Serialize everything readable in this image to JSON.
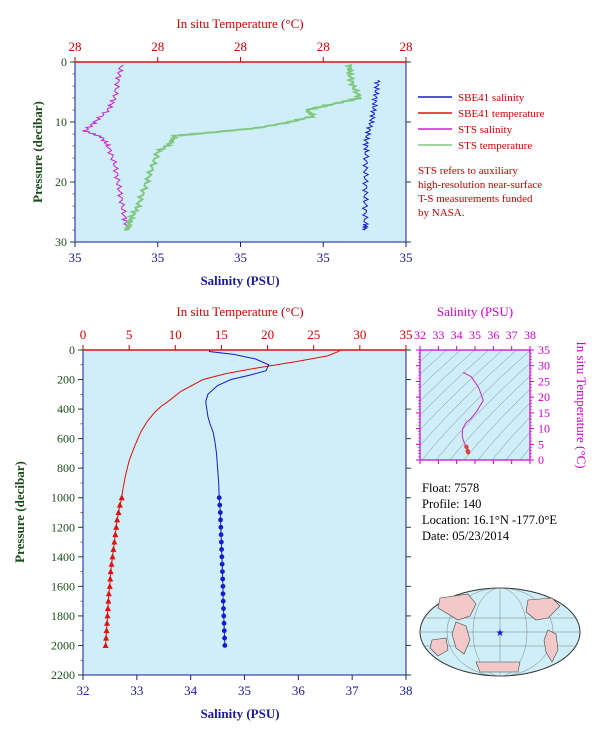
{
  "colors": {
    "panel_bg": "#cfeef8",
    "sbe_salinity": "#1a1acc",
    "sbe_temperature": "#e01010",
    "sts_salinity": "#cc22cc",
    "sts_temperature": "#80c880",
    "axis_red": "#cc0000",
    "axis_blue": "#1a1a99",
    "axis_green": "#1a4d1a",
    "axis_magenta": "#cc00cc"
  },
  "legend": {
    "items": [
      {
        "label": "SBE41 salinity",
        "color": "#1a1acc"
      },
      {
        "label": "SBE41 temperature",
        "color": "#e01010"
      },
      {
        "label": "STS salinity",
        "color": "#cc22cc"
      },
      {
        "label": "STS temperature",
        "color": "#80c880"
      }
    ],
    "note": [
      "STS refers to auxiliary",
      "high-resolution near-surface",
      "T-S measurements funded",
      "by NASA."
    ]
  },
  "float_info": {
    "float": "Float:  7578",
    "profile": "Profile:  140",
    "location": "Location:  16.1°N  -177.0°E",
    "date": "Date:  05/23/2014"
  },
  "chart_data": [
    {
      "type": "line",
      "name_hint": "near-surface",
      "title_top": "In situ Temperature (°C)",
      "xlabel": "Salinity (PSU)",
      "ylabel": "Pressure (decibar)",
      "x_ticks_top": [
        "28",
        "28",
        "28",
        "28",
        "28"
      ],
      "x_ticks_bottom": [
        "35",
        "35",
        "35",
        "35",
        "35"
      ],
      "y_ticks": [
        "0",
        "10",
        "20",
        "30"
      ],
      "ylim": [
        0,
        30
      ],
      "series": [
        {
          "name": "SBE41 salinity",
          "y": [
            3,
            5,
            7,
            9,
            11,
            13,
            15,
            18,
            21,
            24,
            27,
            28
          ],
          "x_frac": [
            0.915,
            0.91,
            0.905,
            0.9,
            0.89,
            0.88,
            0.88,
            0.878,
            0.878,
            0.877,
            0.877,
            0.877
          ]
        },
        {
          "name": "STS salinity",
          "y": [
            0.5,
            3,
            6,
            8,
            10,
            11.5,
            12.5,
            14,
            17,
            20,
            23,
            26,
            28
          ],
          "x_frac": [
            0.14,
            0.13,
            0.12,
            0.1,
            0.06,
            0.03,
            0.08,
            0.1,
            0.12,
            0.13,
            0.14,
            0.15,
            0.16
          ]
        },
        {
          "name": "STS temperature",
          "y": [
            0.5,
            2,
            4,
            6,
            7,
            8,
            9,
            10,
            11,
            11.8,
            12.3,
            13.5,
            15,
            18,
            21,
            24,
            26,
            27.5,
            28
          ],
          "x_frac": [
            0.83,
            0.83,
            0.84,
            0.86,
            0.78,
            0.7,
            0.72,
            0.65,
            0.55,
            0.4,
            0.3,
            0.29,
            0.25,
            0.23,
            0.21,
            0.19,
            0.17,
            0.16,
            0.155
          ]
        }
      ]
    },
    {
      "type": "line",
      "name_hint": "full-profile",
      "title_top": "In situ Temperature (°C)",
      "xlabel": "Salinity (PSU)",
      "ylabel": "Pressure (decibar)",
      "x_ticks_top": [
        "0",
        "5",
        "10",
        "15",
        "20",
        "25",
        "30",
        "35"
      ],
      "x_ticks_bottom": [
        "32",
        "33",
        "34",
        "35",
        "36",
        "37",
        "38"
      ],
      "y_ticks": [
        "0",
        "200",
        "400",
        "600",
        "800",
        "1000",
        "1200",
        "1400",
        "1600",
        "1800",
        "2000",
        "2200"
      ],
      "xlim_temp": [
        0,
        35
      ],
      "xlim_sal": [
        32,
        38
      ],
      "ylim": [
        0,
        2200
      ],
      "series": [
        {
          "name": "SBE41 temperature",
          "pressure": [
            0,
            10,
            40,
            80,
            120,
            160,
            200,
            240,
            280,
            320,
            350,
            380,
            420,
            480,
            550,
            650,
            750,
            850,
            950,
            1000
          ],
          "values": [
            27.9,
            27.7,
            26.5,
            23,
            19,
            15.5,
            13,
            11.8,
            10.6,
            9.8,
            9.2,
            8.5,
            7.8,
            7,
            6.3,
            5.6,
            5,
            4.6,
            4.3,
            4.2
          ]
        },
        {
          "name": "SBE41 temperature deep",
          "pressure": [
            1000,
            1050,
            1100,
            1150,
            1200,
            1250,
            1300,
            1350,
            1400,
            1450,
            1500,
            1550,
            1600,
            1650,
            1700,
            1750,
            1800,
            1850,
            1900,
            1950,
            2000
          ],
          "values": [
            4.2,
            4.0,
            3.85,
            3.7,
            3.6,
            3.5,
            3.4,
            3.3,
            3.2,
            3.1,
            3.0,
            2.95,
            2.9,
            2.8,
            2.75,
            2.7,
            2.65,
            2.6,
            2.55,
            2.5,
            2.45
          ]
        },
        {
          "name": "SBE41 salinity",
          "pressure": [
            0,
            10,
            30,
            60,
            100,
            140,
            170,
            200,
            240,
            300,
            350,
            400,
            450,
            500,
            560,
            620,
            700,
            800,
            900,
            1000
          ],
          "values": [
            34.35,
            34.35,
            34.8,
            35.2,
            35.45,
            35.4,
            35.1,
            34.75,
            34.5,
            34.32,
            34.28,
            34.3,
            34.32,
            34.36,
            34.42,
            34.45,
            34.48,
            34.5,
            34.52,
            34.53
          ]
        },
        {
          "name": "SBE41 salinity deep",
          "pressure": [
            1000,
            1050,
            1100,
            1150,
            1200,
            1250,
            1300,
            1350,
            1400,
            1450,
            1500,
            1550,
            1600,
            1650,
            1700,
            1750,
            1800,
            1850,
            1900,
            1950,
            2000
          ],
          "values": [
            34.53,
            34.54,
            34.55,
            34.555,
            34.56,
            34.565,
            34.57,
            34.575,
            34.58,
            34.585,
            34.59,
            34.595,
            34.6,
            34.6,
            34.605,
            34.61,
            34.615,
            34.62,
            34.625,
            34.63,
            34.635
          ]
        }
      ]
    },
    {
      "type": "scatter",
      "name_hint": "t-s-diagram",
      "xlabel": "Salinity (PSU)",
      "ylabel": "In situ Temperature (°C)",
      "x_ticks": [
        "32",
        "33",
        "34",
        "35",
        "36",
        "37",
        "38"
      ],
      "y_ticks": [
        "0",
        "5",
        "10",
        "15",
        "20",
        "25",
        "30",
        "35"
      ],
      "xlim": [
        32,
        38
      ],
      "ylim": [
        0,
        35
      ],
      "points": {
        "salinity": [
          34.35,
          34.8,
          35.2,
          35.45,
          35.1,
          34.75,
          34.5,
          34.32,
          34.3,
          34.36,
          34.45,
          34.53,
          34.6,
          34.63
        ],
        "temperature": [
          27.9,
          26.5,
          23,
          19,
          15.5,
          13,
          11.8,
          9.8,
          7.8,
          6.3,
          5,
          4.2,
          2.9,
          2.45
        ]
      }
    }
  ]
}
